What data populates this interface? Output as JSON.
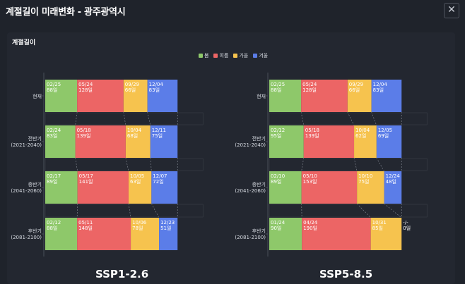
{
  "window": {
    "title": "계절길이 미래변화 - 광주광역시",
    "close_icon": "✕"
  },
  "section_title": "계절길이",
  "legend": [
    {
      "name": "봄",
      "color": "#8ec86a"
    },
    {
      "name": "여름",
      "color": "#ec6565"
    },
    {
      "name": "가을",
      "color": "#f6c34e"
    },
    {
      "name": "겨울",
      "color": "#5b7de8"
    }
  ],
  "chart_data": [
    {
      "type": "bar",
      "stacked": true,
      "orientation": "horizontal",
      "title": "SSP1-2.6",
      "categories": [
        [
          "현재"
        ],
        [
          "전반기",
          "(2021-2040)"
        ],
        [
          "중반기",
          "(2041-2060)"
        ],
        [
          "후반기",
          "(2081-2100)"
        ]
      ],
      "series": [
        {
          "name": "봄",
          "dates": [
            "02/25",
            "02/24",
            "02/17",
            "02/12"
          ],
          "values": [
            88,
            83,
            89,
            88
          ],
          "labels": [
            "88일",
            "83일",
            "89일",
            "88일"
          ]
        },
        {
          "name": "여름",
          "dates": [
            "05/24",
            "05/18",
            "05/17",
            "05/11"
          ],
          "values": [
            128,
            139,
            141,
            148
          ],
          "labels": [
            "128일",
            "139일",
            "141일",
            "148일"
          ]
        },
        {
          "name": "가을",
          "dates": [
            "09/29",
            "10/04",
            "10/05",
            "10/06"
          ],
          "values": [
            66,
            68,
            63,
            78
          ],
          "labels": [
            "66일",
            "68일",
            "63일",
            "78일"
          ]
        },
        {
          "name": "겨울",
          "dates": [
            "12/04",
            "12/11",
            "12/07",
            "12/23"
          ],
          "values": [
            83,
            75,
            72,
            51
          ],
          "labels": [
            "83일",
            "75일",
            "72일",
            "51일"
          ]
        }
      ]
    },
    {
      "type": "bar",
      "stacked": true,
      "orientation": "horizontal",
      "title": "SSP5-8.5",
      "categories": [
        [
          "현재"
        ],
        [
          "전반기",
          "(2021-2040)"
        ],
        [
          "중반기",
          "(2041-2060)"
        ],
        [
          "후반기",
          "(2081-2100)"
        ]
      ],
      "series": [
        {
          "name": "봄",
          "dates": [
            "02/25",
            "02/12",
            "02/10",
            "01/24"
          ],
          "values": [
            88,
            95,
            89,
            90
          ],
          "labels": [
            "88일",
            "95일",
            "89일",
            "90일"
          ]
        },
        {
          "name": "여름",
          "dates": [
            "05/24",
            "05/18",
            "05/10",
            "04/24"
          ],
          "values": [
            128,
            139,
            153,
            190
          ],
          "labels": [
            "128일",
            "139일",
            "153일",
            "190일"
          ]
        },
        {
          "name": "가을",
          "dates": [
            "09/29",
            "10/04",
            "10/10",
            "10/31"
          ],
          "values": [
            66,
            62,
            75,
            85
          ],
          "labels": [
            "66일",
            "62일",
            "75일",
            "85일"
          ]
        },
        {
          "name": "겨울",
          "dates": [
            "12/04",
            "12/05",
            "12/24",
            "-/-"
          ],
          "values": [
            83,
            69,
            48,
            0
          ],
          "labels": [
            "83일",
            "69일",
            "48일",
            "0일"
          ]
        }
      ]
    }
  ]
}
